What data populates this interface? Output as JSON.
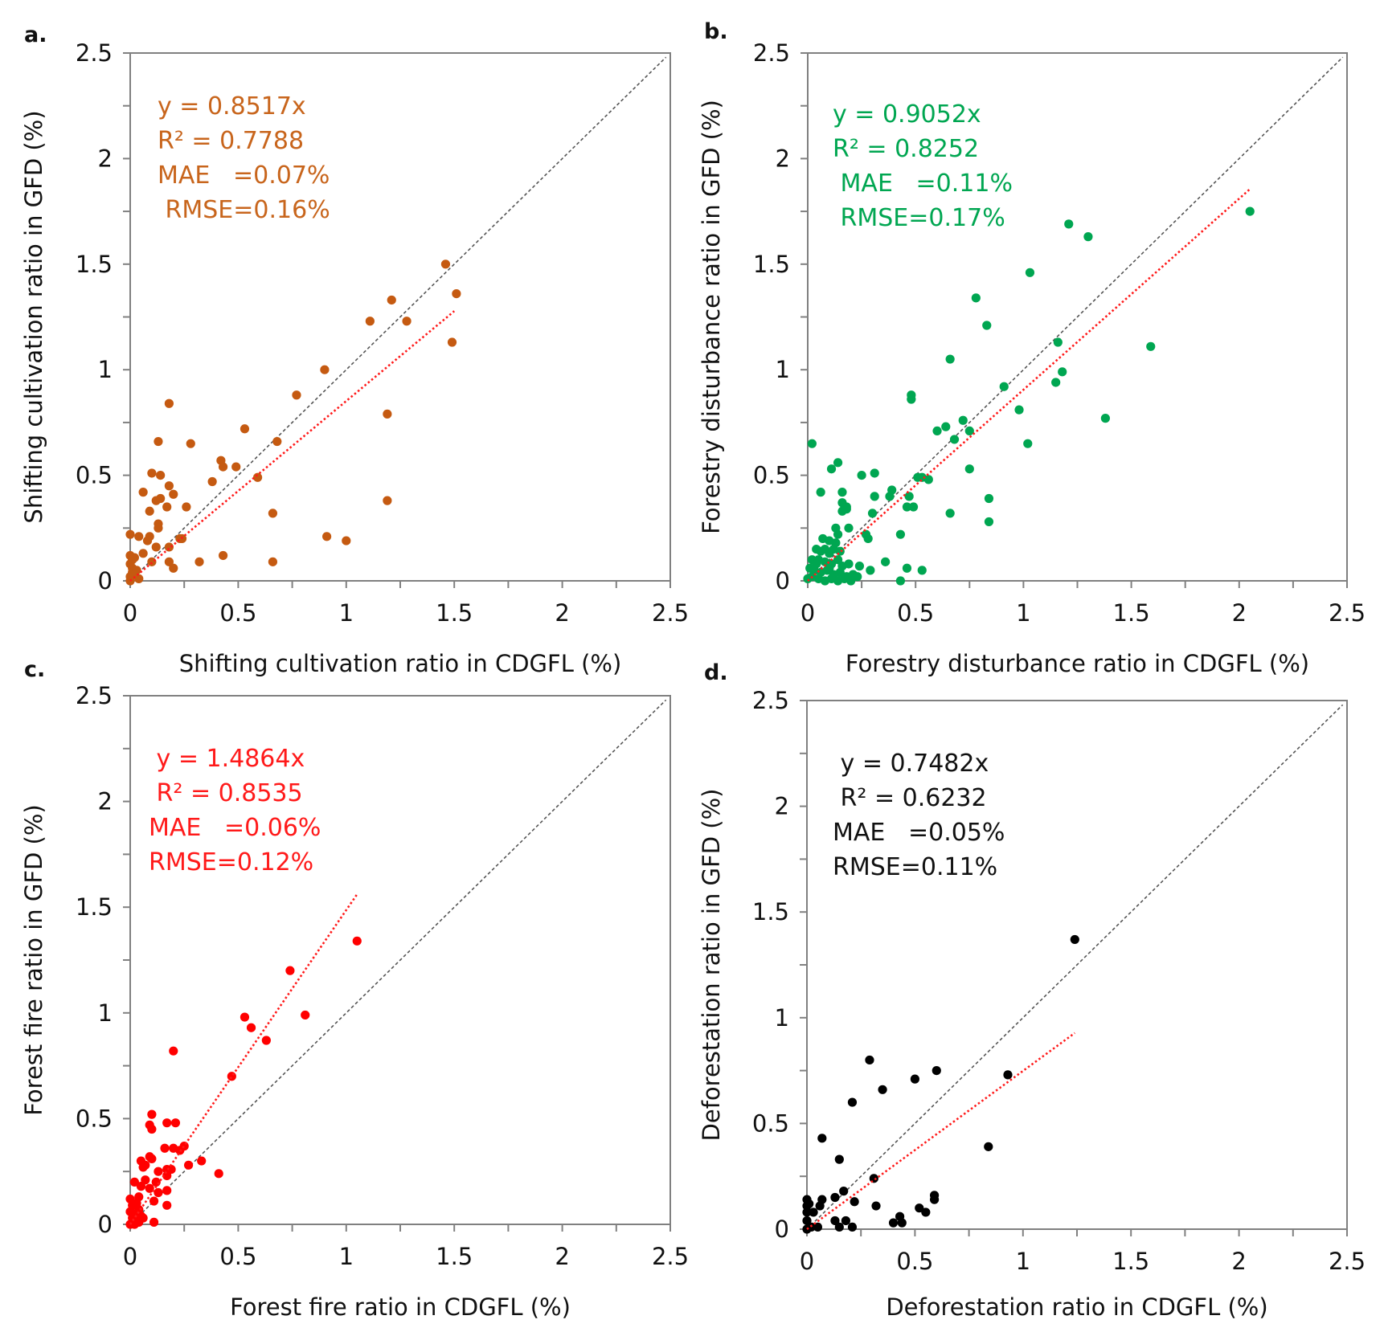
{
  "chart_data": [
    {
      "id": "a",
      "type": "scatter",
      "panel_label": "a.",
      "xlabel": "Shifting cultivation ratio in CDGFL (%)",
      "ylabel": "Shifting cultivation ratio in GFD (%)",
      "xlim": [
        0,
        2.5
      ],
      "ylim": [
        0,
        2.5
      ],
      "xticks": [
        "0",
        "0.5",
        "1",
        "1.5",
        "2",
        "2.5"
      ],
      "yticks": [
        "0",
        "0.5",
        "1",
        "1.5",
        "2",
        "2.5"
      ],
      "color": "#c55a11",
      "stats_color": "#c8651c",
      "stats": [
        "y = 0.8517x",
        "R² = 0.7788",
        "MAE   =0.07%",
        " RMSE=0.16%"
      ],
      "fit": {
        "slope": 0.8517,
        "x_max": 1.5
      },
      "one_to_one_line": true,
      "points": [
        [
          1.46,
          1.5
        ],
        [
          1.51,
          1.36
        ],
        [
          1.21,
          1.33
        ],
        [
          1.11,
          1.23
        ],
        [
          1.28,
          1.23
        ],
        [
          1.49,
          1.13
        ],
        [
          0.9,
          1.0
        ],
        [
          0.77,
          0.88
        ],
        [
          0.18,
          0.84
        ],
        [
          1.19,
          0.79
        ],
        [
          0.53,
          0.72
        ],
        [
          0.13,
          0.66
        ],
        [
          0.28,
          0.65
        ],
        [
          0.68,
          0.66
        ],
        [
          0.42,
          0.57
        ],
        [
          0.43,
          0.54
        ],
        [
          0.49,
          0.54
        ],
        [
          0.1,
          0.51
        ],
        [
          0.14,
          0.5
        ],
        [
          0.59,
          0.49
        ],
        [
          0.38,
          0.47
        ],
        [
          0.18,
          0.45
        ],
        [
          0.06,
          0.42
        ],
        [
          0.2,
          0.41
        ],
        [
          0.12,
          0.38
        ],
        [
          0.14,
          0.39
        ],
        [
          1.19,
          0.38
        ],
        [
          0.26,
          0.35
        ],
        [
          0.17,
          0.35
        ],
        [
          0.09,
          0.33
        ],
        [
          0.66,
          0.32
        ],
        [
          0.13,
          0.27
        ],
        [
          0.13,
          0.25
        ],
        [
          0.0,
          0.22
        ],
        [
          0.04,
          0.21
        ],
        [
          0.09,
          0.21
        ],
        [
          0.08,
          0.19
        ],
        [
          0.24,
          0.2
        ],
        [
          0.23,
          0.2
        ],
        [
          0.91,
          0.21
        ],
        [
          1.0,
          0.19
        ],
        [
          0.12,
          0.16
        ],
        [
          0.18,
          0.16
        ],
        [
          0.06,
          0.13
        ],
        [
          0.0,
          0.12
        ],
        [
          0.02,
          0.11
        ],
        [
          0.1,
          0.09
        ],
        [
          0.32,
          0.09
        ],
        [
          0.43,
          0.12
        ],
        [
          0.18,
          0.09
        ],
        [
          0.66,
          0.09
        ],
        [
          0.2,
          0.06
        ],
        [
          0.0,
          0.08
        ],
        [
          0.01,
          0.06
        ],
        [
          0.01,
          0.04
        ],
        [
          0.03,
          0.05
        ],
        [
          0.04,
          0.01
        ],
        [
          0.0,
          0.0
        ],
        [
          0.02,
          0.03
        ],
        [
          0.0,
          0.02
        ],
        [
          0.01,
          0.1
        ]
      ]
    },
    {
      "id": "b",
      "type": "scatter",
      "panel_label": "b.",
      "xlabel": "Forestry disturbance ratio in CDGFL (%)",
      "ylabel": "Forestry disturbance ratio in GFD (%)",
      "xlim": [
        0,
        2.5
      ],
      "ylim": [
        0,
        2.5
      ],
      "xticks": [
        "0",
        "0.5",
        "1",
        "1.5",
        "2",
        "2.5"
      ],
      "yticks": [
        "0",
        "0.5",
        "1",
        "1.5",
        "2",
        "2.5"
      ],
      "color": "#00a651",
      "stats_color": "#00a651",
      "stats": [
        "y = 0.9052x",
        "R² = 0.8252",
        " MAE   =0.11%",
        " RMSE=0.17%"
      ],
      "fit": {
        "slope": 0.9052,
        "x_max": 2.05
      },
      "one_to_one_line": true,
      "points": [
        [
          2.05,
          1.75
        ],
        [
          1.21,
          1.69
        ],
        [
          1.3,
          1.63
        ],
        [
          1.03,
          1.46
        ],
        [
          0.78,
          1.34
        ],
        [
          0.83,
          1.21
        ],
        [
          1.16,
          1.13
        ],
        [
          1.59,
          1.11
        ],
        [
          0.66,
          1.05
        ],
        [
          1.18,
          0.99
        ],
        [
          1.15,
          0.94
        ],
        [
          0.91,
          0.92
        ],
        [
          0.48,
          0.88
        ],
        [
          0.48,
          0.86
        ],
        [
          0.98,
          0.81
        ],
        [
          1.38,
          0.77
        ],
        [
          0.72,
          0.76
        ],
        [
          0.64,
          0.73
        ],
        [
          0.6,
          0.71
        ],
        [
          0.75,
          0.71
        ],
        [
          0.68,
          0.67
        ],
        [
          1.02,
          0.65
        ],
        [
          0.02,
          0.65
        ],
        [
          0.75,
          0.53
        ],
        [
          0.14,
          0.56
        ],
        [
          0.11,
          0.53
        ],
        [
          0.25,
          0.5
        ],
        [
          0.31,
          0.51
        ],
        [
          0.51,
          0.49
        ],
        [
          0.53,
          0.49
        ],
        [
          0.56,
          0.48
        ],
        [
          0.06,
          0.42
        ],
        [
          0.16,
          0.42
        ],
        [
          0.16,
          0.37
        ],
        [
          0.18,
          0.35
        ],
        [
          0.16,
          0.33
        ],
        [
          0.18,
          0.34
        ],
        [
          0.31,
          0.4
        ],
        [
          0.39,
          0.43
        ],
        [
          0.38,
          0.4
        ],
        [
          0.3,
          0.32
        ],
        [
          0.47,
          0.4
        ],
        [
          0.46,
          0.35
        ],
        [
          0.49,
          0.35
        ],
        [
          0.66,
          0.32
        ],
        [
          0.84,
          0.39
        ],
        [
          0.84,
          0.28
        ],
        [
          0.13,
          0.25
        ],
        [
          0.14,
          0.22
        ],
        [
          0.19,
          0.25
        ],
        [
          0.27,
          0.22
        ],
        [
          0.28,
          0.2
        ],
        [
          0.43,
          0.22
        ],
        [
          0.1,
          0.19
        ],
        [
          0.36,
          0.09
        ],
        [
          0.46,
          0.06
        ],
        [
          0.53,
          0.05
        ],
        [
          0.43,
          0.0
        ],
        [
          0.29,
          0.05
        ],
        [
          0.24,
          0.07
        ],
        [
          0.04,
          0.15
        ],
        [
          0.06,
          0.14
        ],
        [
          0.08,
          0.15
        ],
        [
          0.1,
          0.13
        ],
        [
          0.12,
          0.15
        ],
        [
          0.15,
          0.14
        ],
        [
          0.02,
          0.1
        ],
        [
          0.05,
          0.1
        ],
        [
          0.08,
          0.09
        ],
        [
          0.11,
          0.08
        ],
        [
          0.14,
          0.1
        ],
        [
          0.16,
          0.07
        ],
        [
          0.19,
          0.08
        ],
        [
          0.01,
          0.06
        ],
        [
          0.03,
          0.05
        ],
        [
          0.06,
          0.04
        ],
        [
          0.09,
          0.05
        ],
        [
          0.12,
          0.03
        ],
        [
          0.15,
          0.04
        ],
        [
          0.18,
          0.02
        ],
        [
          0.21,
          0.03
        ],
        [
          0.23,
          0.02
        ],
        [
          0.0,
          0.01
        ],
        [
          0.02,
          0.02
        ],
        [
          0.05,
          0.01
        ],
        [
          0.08,
          0.0
        ],
        [
          0.11,
          0.01
        ],
        [
          0.14,
          0.0
        ],
        [
          0.17,
          0.01
        ],
        [
          0.2,
          0.0
        ],
        [
          0.07,
          0.2
        ],
        [
          0.13,
          0.18
        ],
        [
          0.04,
          0.08
        ],
        [
          0.1,
          0.06
        ]
      ]
    },
    {
      "id": "c",
      "type": "scatter",
      "panel_label": "c.",
      "xlabel": "Forest fire ratio in CDGFL (%)",
      "ylabel": "Forest fire ratio in GFD (%)",
      "xlim": [
        0,
        2.5
      ],
      "ylim": [
        0,
        2.5
      ],
      "xticks": [
        "0",
        "0.5",
        "1",
        "1.5",
        "2",
        "2.5"
      ],
      "yticks": [
        "0",
        "0.5",
        "1",
        "1.5",
        "2",
        "2.5"
      ],
      "color": "#ff0000",
      "stats_color": "#ff1a1a",
      "stats": [
        " y = 1.4864x",
        " R² = 0.8535",
        "MAE   =0.06%",
        "RMSE=0.12%"
      ],
      "fit": {
        "slope": 1.4864,
        "x_max": 1.05
      },
      "one_to_one_line": true,
      "points": [
        [
          1.05,
          1.34
        ],
        [
          0.74,
          1.2
        ],
        [
          0.81,
          0.99
        ],
        [
          0.53,
          0.98
        ],
        [
          0.56,
          0.93
        ],
        [
          0.63,
          0.87
        ],
        [
          0.2,
          0.82
        ],
        [
          0.47,
          0.7
        ],
        [
          0.1,
          0.52
        ],
        [
          0.09,
          0.47
        ],
        [
          0.1,
          0.45
        ],
        [
          0.17,
          0.48
        ],
        [
          0.21,
          0.48
        ],
        [
          0.16,
          0.36
        ],
        [
          0.2,
          0.36
        ],
        [
          0.23,
          0.35
        ],
        [
          0.25,
          0.37
        ],
        [
          0.09,
          0.32
        ],
        [
          0.1,
          0.31
        ],
        [
          0.05,
          0.3
        ],
        [
          0.27,
          0.28
        ],
        [
          0.33,
          0.3
        ],
        [
          0.41,
          0.24
        ],
        [
          0.06,
          0.27
        ],
        [
          0.07,
          0.28
        ],
        [
          0.13,
          0.25
        ],
        [
          0.17,
          0.26
        ],
        [
          0.19,
          0.26
        ],
        [
          0.17,
          0.23
        ],
        [
          0.02,
          0.2
        ],
        [
          0.07,
          0.21
        ],
        [
          0.05,
          0.18
        ],
        [
          0.12,
          0.2
        ],
        [
          0.09,
          0.17
        ],
        [
          0.13,
          0.15
        ],
        [
          0.17,
          0.16
        ],
        [
          0.11,
          0.11
        ],
        [
          0.17,
          0.09
        ],
        [
          0.04,
          0.13
        ],
        [
          0.11,
          0.01
        ],
        [
          0.0,
          0.12
        ],
        [
          0.01,
          0.09
        ],
        [
          0.03,
          0.1
        ],
        [
          0.0,
          0.06
        ],
        [
          0.02,
          0.05
        ],
        [
          0.04,
          0.07
        ],
        [
          0.01,
          0.03
        ],
        [
          0.03,
          0.02
        ],
        [
          0.05,
          0.04
        ],
        [
          0.0,
          0.0
        ],
        [
          0.02,
          0.0
        ],
        [
          0.04,
          0.01
        ],
        [
          0.06,
          0.03
        ]
      ]
    },
    {
      "id": "d",
      "type": "scatter",
      "panel_label": "d.",
      "xlabel": "Deforestation ratio in CDGFL (%)",
      "ylabel": "Deforestation ratio in GFD (%)",
      "xlim": [
        0,
        2.5
      ],
      "ylim": [
        0,
        2.5
      ],
      "xticks": [
        "0",
        "0.5",
        "1",
        "1.5",
        "2",
        "2.5"
      ],
      "yticks": [
        "0",
        "0.5",
        "1",
        "1.5",
        "2",
        "2.5"
      ],
      "color": "#000000",
      "stats_color": "#111111",
      "stats": [
        " y = 0.7482x",
        " R² = 0.6232",
        "MAE   =0.05%",
        "RMSE=0.11%"
      ],
      "fit": {
        "slope": 0.7482,
        "x_max": 1.24
      },
      "one_to_one_line": true,
      "points": [
        [
          1.24,
          1.37
        ],
        [
          0.93,
          0.73
        ],
        [
          0.6,
          0.75
        ],
        [
          0.5,
          0.71
        ],
        [
          0.29,
          0.8
        ],
        [
          0.35,
          0.66
        ],
        [
          0.21,
          0.6
        ],
        [
          0.84,
          0.39
        ],
        [
          0.07,
          0.43
        ],
        [
          0.15,
          0.33
        ],
        [
          0.31,
          0.24
        ],
        [
          0.17,
          0.18
        ],
        [
          0.13,
          0.15
        ],
        [
          0.22,
          0.13
        ],
        [
          0.32,
          0.11
        ],
        [
          0.59,
          0.16
        ],
        [
          0.59,
          0.14
        ],
        [
          0.52,
          0.1
        ],
        [
          0.55,
          0.08
        ],
        [
          0.43,
          0.06
        ],
        [
          0.44,
          0.03
        ],
        [
          0.4,
          0.03
        ],
        [
          0.07,
          0.14
        ],
        [
          0.06,
          0.11
        ],
        [
          0.13,
          0.04
        ],
        [
          0.18,
          0.04
        ],
        [
          0.15,
          0.01
        ],
        [
          0.21,
          0.01
        ],
        [
          0.0,
          0.14
        ],
        [
          0.0,
          0.11
        ],
        [
          0.0,
          0.08
        ],
        [
          0.03,
          0.08
        ],
        [
          0.0,
          0.04
        ],
        [
          0.05,
          0.01
        ],
        [
          0.02,
          0.01
        ],
        [
          0.0,
          0.0
        ],
        [
          0.01,
          0.12
        ]
      ]
    }
  ]
}
